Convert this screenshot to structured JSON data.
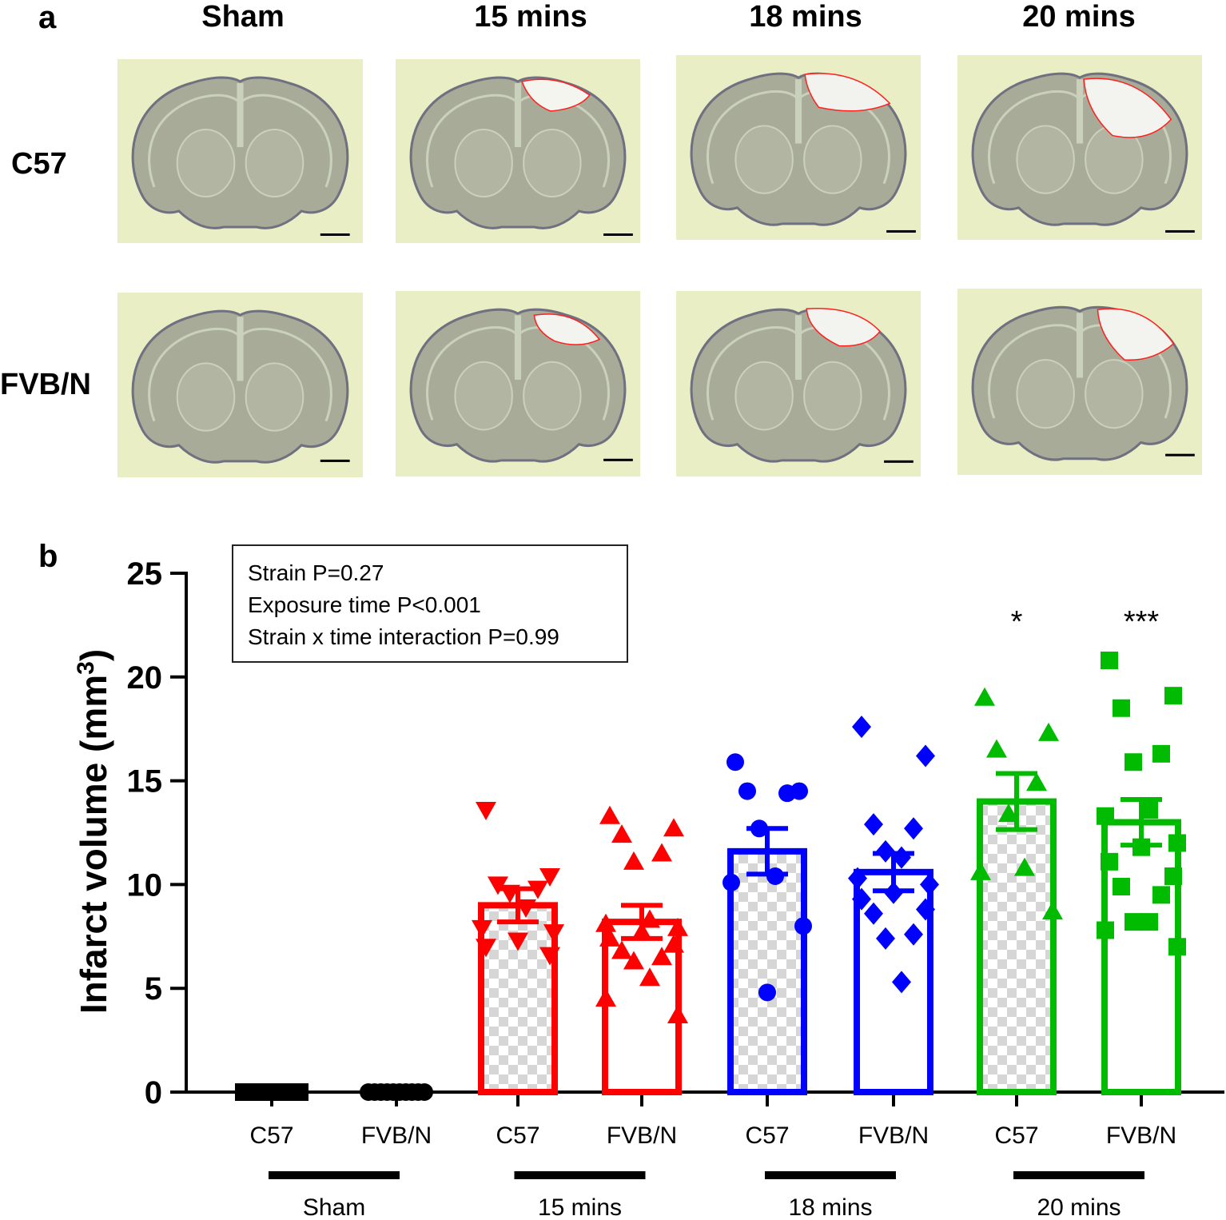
{
  "panel_a": {
    "label": "a",
    "columns": [
      "Sham",
      "15 mins",
      "18 mins",
      "20 mins"
    ],
    "rows": [
      "C57",
      "FVB/N"
    ]
  },
  "panel_b": {
    "label": "b",
    "stats": [
      "Strain P=0.27",
      "Exposure time P<0.001",
      "Strain x time interaction P=0.99"
    ]
  },
  "chart_data": {
    "type": "bar",
    "title": "",
    "xlabel": "",
    "ylabel": "Infarct volume (mm",
    "ylabel_superscript": "3",
    "ylabel_suffix": ")",
    "ylim": [
      0,
      25
    ],
    "yticks": [
      0,
      5,
      10,
      15,
      20,
      25
    ],
    "categories": [
      "C57",
      "FVB/N",
      "C57",
      "FVB/N",
      "C57",
      "FVB/N",
      "C57",
      "FVB/N"
    ],
    "groups": [
      "Sham",
      "15 mins",
      "18 mins",
      "20 mins"
    ],
    "group_colors": [
      "#000000",
      "#ff0000",
      "#0000ff",
      "#00bb00"
    ],
    "bars": [
      {
        "group": "Sham",
        "strain": "C57",
        "mean": 0.0,
        "sem": 0.0,
        "fill": "checker",
        "marker": "square",
        "color": "#000000",
        "points": [
          0,
          0,
          0,
          0,
          0,
          0,
          0,
          0,
          0,
          0
        ]
      },
      {
        "group": "Sham",
        "strain": "FVB/N",
        "mean": 0.0,
        "sem": 0.0,
        "fill": "white",
        "marker": "circle",
        "color": "#000000",
        "points": [
          0,
          0,
          0,
          0,
          0,
          0,
          0,
          0,
          0,
          0
        ]
      },
      {
        "group": "15 mins",
        "strain": "C57",
        "mean": 9.0,
        "sem": 0.8,
        "fill": "checker",
        "marker": "triangle-down",
        "color": "#ff0000",
        "points": [
          13.6,
          10.4,
          10.0,
          9.8,
          9.6,
          8.9,
          7.9,
          7.7,
          7.3,
          7.0,
          6.6
        ]
      },
      {
        "group": "15 mins",
        "strain": "FVB/N",
        "mean": 8.2,
        "sem": 0.8,
        "fill": "white",
        "marker": "triangle-up",
        "color": "#ff0000",
        "points": [
          13.3,
          12.7,
          12.4,
          11.5,
          11.1,
          8.3,
          8.1,
          7.9,
          7.7,
          7.4,
          7.1,
          6.8,
          6.5,
          6.3,
          5.5,
          4.5,
          3.7
        ]
      },
      {
        "group": "18 mins",
        "strain": "C57",
        "mean": 11.6,
        "sem": 1.1,
        "fill": "checker",
        "marker": "circle",
        "color": "#0000ff",
        "points": [
          15.9,
          14.5,
          14.5,
          14.4,
          12.7,
          10.4,
          10.1,
          8.0,
          4.8
        ]
      },
      {
        "group": "18 mins",
        "strain": "FVB/N",
        "mean": 10.6,
        "sem": 0.9,
        "fill": "white",
        "marker": "diamond",
        "color": "#0000ff",
        "points": [
          17.6,
          16.2,
          12.9,
          12.7,
          11.6,
          11.3,
          10.3,
          10.0,
          9.6,
          9.3,
          8.8,
          8.6,
          7.6,
          7.4,
          5.3
        ]
      },
      {
        "group": "20 mins",
        "strain": "C57",
        "mean": 14.0,
        "sem": 1.35,
        "fill": "checker",
        "marker": "triangle-up",
        "color": "#00bb00",
        "points": [
          19.0,
          17.3,
          16.5,
          14.9,
          13.4,
          10.8,
          10.6,
          8.7
        ]
      },
      {
        "group": "20 mins",
        "strain": "FVB/N",
        "mean": 13.0,
        "sem": 1.1,
        "fill": "white",
        "marker": "square",
        "color": "#00bb00",
        "points": [
          20.8,
          19.1,
          18.5,
          16.3,
          15.9,
          13.6,
          13.3,
          12.0,
          11.8,
          11.1,
          10.4,
          9.9,
          9.5,
          8.2,
          8.2,
          7.8,
          7.0
        ]
      }
    ],
    "annotations": [
      {
        "bar_index": 6,
        "text": "*"
      },
      {
        "bar_index": 7,
        "text": "***"
      }
    ]
  }
}
